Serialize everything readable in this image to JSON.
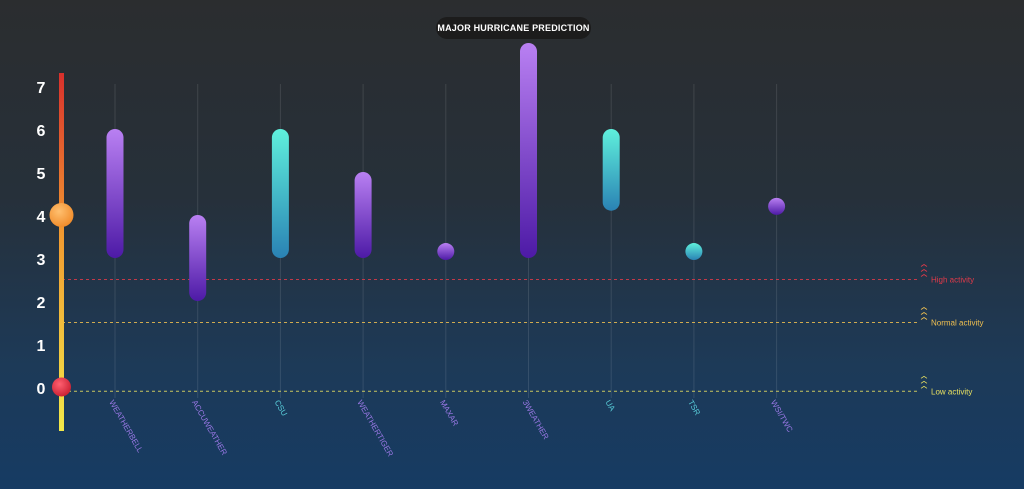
{
  "chart_data": {
    "type": "range-bar",
    "title": "MAJOR HURRICANE PREDICTION",
    "ylim": [
      0,
      8
    ],
    "yticks": [
      "0",
      "1",
      "2",
      "3",
      "4",
      "5",
      "6",
      "7"
    ],
    "categories": [
      "WEATHERBELL",
      "ACCUWEATHER",
      "CSU",
      "WEATHERTIGER",
      "MAXAR",
      "3WEATHER",
      "UA",
      "TSR",
      "WSI/TWC"
    ],
    "ranges": [
      {
        "low": 3,
        "high": 6,
        "style": "purple"
      },
      {
        "low": 2,
        "high": 4,
        "style": "purple"
      },
      {
        "low": 3,
        "high": 6,
        "style": "teal"
      },
      {
        "low": 3,
        "high": 5,
        "style": "purple"
      },
      {
        "low": 3.15,
        "high": 3.15,
        "style": "purple"
      },
      {
        "low": 3,
        "high": 8,
        "style": "purple"
      },
      {
        "low": 4.1,
        "high": 6,
        "style": "teal"
      },
      {
        "low": 3.15,
        "high": 3.15,
        "style": "teal"
      },
      {
        "low": 4.2,
        "high": 4.2,
        "style": "purple"
      }
    ],
    "thresholds": [
      {
        "label": "High activity",
        "value": 2.5,
        "color": "#e03a4a"
      },
      {
        "label": "Normal activity",
        "value": 1.5,
        "color": "#f0c050"
      },
      {
        "label": "Low activity",
        "value": -0.1,
        "color": "#e8e060"
      }
    ],
    "scale_markers": [
      {
        "value": 4,
        "color": "#f5a040"
      },
      {
        "value": 0,
        "color": "#d83040"
      }
    ],
    "grid": true
  },
  "colors": {
    "purple_top": "#b980f2",
    "purple_bottom": "#4d1aa6",
    "teal_top": "#5ff0dc",
    "teal_bottom": "#2a82b4",
    "label_purple": "#9a78e6",
    "label_teal": "#5ad0dc"
  }
}
